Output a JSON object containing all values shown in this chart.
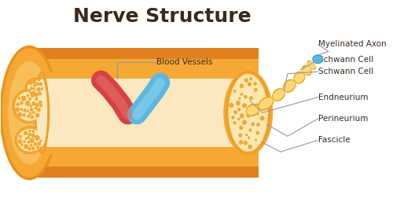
{
  "title": "Nerve Structure",
  "title_color": "#3a2a1e",
  "title_fontsize": 18,
  "background_color": "#ffffff",
  "label_color": "#3a2a1e",
  "label_fontsize": 7.5,
  "colors": {
    "outer_orange": "#f5a833",
    "outer_dark": "#e8931a",
    "mid_orange": "#f7be5a",
    "light_orange": "#fce8b0",
    "very_light": "#fef3d0",
    "stripe_dark": "#e08020",
    "fascicle_ring": "#f5a833",
    "fascicle_light": "#fce090",
    "dot_orange": "#f5a833",
    "blood_red": "#d94040",
    "blood_red_light": "#e07070",
    "blood_blue": "#5bb8e0",
    "blood_blue_light": "#8dd0ee",
    "schwann_yellow": "#fcd878",
    "schwann_border": "#e8a820",
    "blue_tip": "#5bb8e0",
    "line_color": "#999999",
    "inner_rect": "#fbe8c0"
  },
  "labels": {
    "blood_vessels": "Blood Vessels",
    "myelinated_axon": "Myelinated Axon",
    "schwann_cell": "Schwann Cell",
    "endneurium": "Endneurium",
    "perineurium": "Perineurium",
    "fascicle": "Fascicle"
  }
}
